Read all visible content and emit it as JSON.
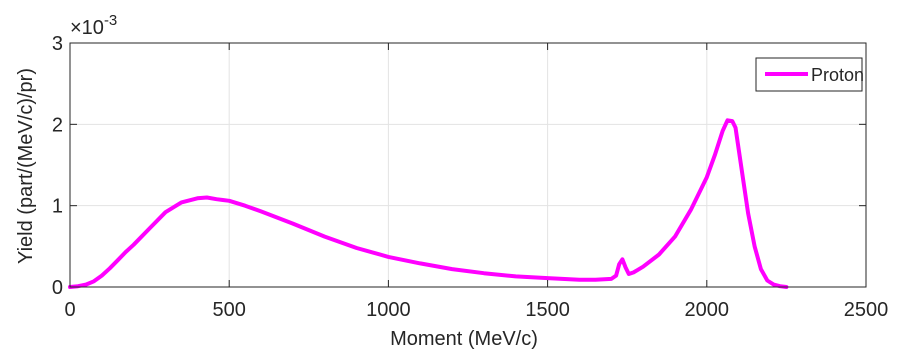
{
  "chart_data": {
    "type": "line",
    "xlabel": "Moment (MeV/c)",
    "ylabel": "Yield (part/(MeV/c)/pr)",
    "exponent_label": "×10",
    "exponent_power": "-3",
    "xlim": [
      0,
      2500
    ],
    "ylim": [
      0,
      3
    ],
    "y_scale_factor": 0.001,
    "xticks": [
      0,
      500,
      1000,
      1500,
      2000,
      2500
    ],
    "yticks": [
      0,
      1,
      2,
      3
    ],
    "xtick_labels": [
      "0",
      "500",
      "1000",
      "1500",
      "2000",
      "2500"
    ],
    "ytick_labels": [
      "0",
      "1",
      "2",
      "3"
    ],
    "grid": true,
    "legend_position": "top-right",
    "series": [
      {
        "name": "Proton",
        "color": "#ff00ff",
        "x": [
          0,
          25,
          50,
          75,
          100,
          125,
          150,
          175,
          200,
          250,
          300,
          350,
          400,
          430,
          460,
          480,
          500,
          550,
          600,
          700,
          800,
          900,
          1000,
          1100,
          1200,
          1300,
          1400,
          1500,
          1600,
          1650,
          1700,
          1715,
          1725,
          1735,
          1745,
          1755,
          1770,
          1800,
          1850,
          1900,
          1950,
          2000,
          2025,
          2050,
          2065,
          2080,
          2090,
          2100,
          2115,
          2130,
          2150,
          2170,
          2190,
          2210,
          2230,
          2250
        ],
        "y": [
          0.0,
          0.01,
          0.03,
          0.07,
          0.14,
          0.23,
          0.33,
          0.43,
          0.52,
          0.72,
          0.92,
          1.04,
          1.09,
          1.1,
          1.08,
          1.07,
          1.06,
          1.0,
          0.93,
          0.78,
          0.62,
          0.48,
          0.37,
          0.29,
          0.22,
          0.17,
          0.13,
          0.11,
          0.09,
          0.09,
          0.1,
          0.14,
          0.28,
          0.34,
          0.24,
          0.16,
          0.18,
          0.25,
          0.4,
          0.62,
          0.95,
          1.35,
          1.62,
          1.92,
          2.05,
          2.04,
          1.96,
          1.7,
          1.3,
          0.9,
          0.5,
          0.22,
          0.08,
          0.03,
          0.01,
          0.0
        ]
      }
    ]
  }
}
